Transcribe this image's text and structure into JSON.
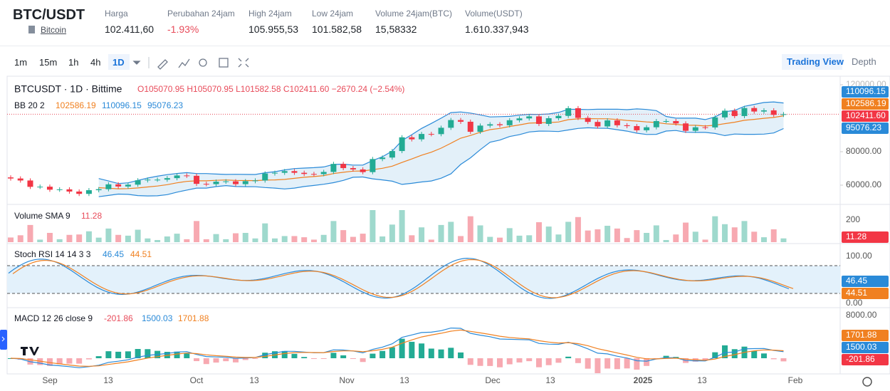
{
  "header": {
    "symbol": "BTC/USDT",
    "link": "Bitcoin",
    "stats": [
      {
        "label": "Harga",
        "value": "102.411,60"
      },
      {
        "label": "Perubahan 24jam",
        "value": "-1.93%"
      },
      {
        "label": "High 24jam",
        "value": "105.955,53"
      },
      {
        "label": "Low 24jam",
        "value": "101.582,58"
      },
      {
        "label": "Volume 24jam(BTC)",
        "value": "15,58332"
      },
      {
        "label": "Volume(USDT)",
        "value": "1.610.337,943"
      }
    ]
  },
  "toolbar": {
    "intervals": [
      "1m",
      "15m",
      "1h",
      "4h",
      "1D"
    ],
    "views": [
      "Trading View",
      "Depth"
    ]
  },
  "chart": {
    "legend": {
      "symbol": "BTCUSDT · 1D · Bittime",
      "ohlc": "O105070.95 H105070.95 L101582.58 C102411.60 −2670.24 (−2.54%)"
    },
    "bb": {
      "name": "BB 20 2",
      "values": [
        "102586.19",
        "110096.15",
        "95076.23"
      ]
    },
    "volume": {
      "name": "Volume SMA 9",
      "value": "11.28",
      "axis": "200"
    },
    "stoch": {
      "name": "Stoch RSI 14 14 3 3",
      "values": [
        "46.45",
        "44.51"
      ],
      "axis": [
        "100.00",
        "0.00"
      ]
    },
    "macd": {
      "name": "MACD 12 26 close 9",
      "values": [
        "-201.86",
        "1500.03",
        "1701.88"
      ],
      "axis": "8000.00"
    },
    "price_ticks": [
      {
        "value": 120000,
        "label": "120000.00"
      },
      {
        "value": 80000,
        "label": "80000.00"
      },
      {
        "value": 60000,
        "label": "60000.00"
      }
    ],
    "price_badges": [
      "110096.15",
      "102586.19",
      "102411.60",
      "95076.23"
    ],
    "dates": [
      "Sep",
      "13",
      "Oct",
      "13",
      "Nov",
      "13",
      "Dec",
      "13",
      "2025",
      "13",
      "Feb"
    ],
    "closes": [
      64000,
      62800,
      59000,
      59100,
      57300,
      57500,
      56200,
      54800,
      57000,
      57600,
      60500,
      59200,
      60300,
      62900,
      63300,
      63300,
      64200,
      65800,
      65600,
      60800,
      60600,
      62100,
      62300,
      60600,
      62400,
      62800,
      67000,
      67400,
      68400,
      67400,
      66700,
      66600,
      67900,
      72700,
      70200,
      69400,
      67800,
      75600,
      76500,
      80400,
      88600,
      87400,
      90600,
      90500,
      94300,
      98900,
      97900,
      91900,
      95600,
      96400,
      95800,
      98800,
      99900,
      101100,
      96600,
      100000,
      101400,
      106000,
      100200,
      97800,
      95100,
      98700,
      95800,
      95300,
      92800,
      94600,
      98300,
      98300,
      96900,
      92500,
      94600,
      94500,
      100500,
      104500,
      101300,
      106100,
      104000,
      104700,
      102000,
      102411.6
    ]
  }
}
